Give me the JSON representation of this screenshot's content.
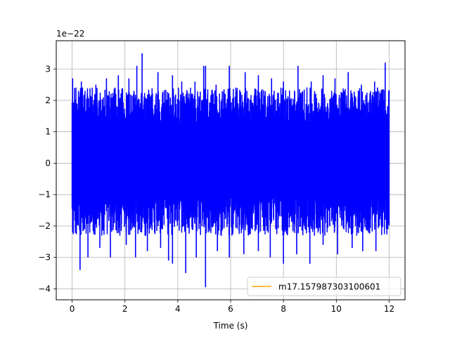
{
  "chart_data": {
    "type": "line",
    "title": "",
    "xlabel": "Time (s)",
    "ylabel": "",
    "offset_text": "1e−22",
    "xlim": [
      -0.6,
      12.6
    ],
    "ylim": [
      -4.35,
      3.9
    ],
    "grid": true,
    "x_ticks": [
      0,
      2,
      4,
      6,
      8,
      10,
      12
    ],
    "x_tick_labels": [
      "0",
      "2",
      "4",
      "6",
      "8",
      "10",
      "12"
    ],
    "y_ticks": [
      -4,
      -3,
      -2,
      -1,
      0,
      1,
      2,
      3
    ],
    "y_tick_labels": [
      "−4",
      "−3",
      "−2",
      "−1",
      "0",
      "1",
      "2",
      "3"
    ],
    "legend": {
      "position": "lower-right"
    },
    "series": [
      {
        "name": "",
        "color": "#0000ff",
        "x_range": [
          0,
          12
        ],
        "core_band": [
          -1.0,
          1.2
        ],
        "envelope": [
          -2.3,
          2.4
        ],
        "upper_spikes": [
          {
            "x": 0.02,
            "y": 2.7
          },
          {
            "x": 0.35,
            "y": 2.6
          },
          {
            "x": 0.9,
            "y": 2.5
          },
          {
            "x": 1.3,
            "y": 2.7
          },
          {
            "x": 1.75,
            "y": 2.8
          },
          {
            "x": 2.15,
            "y": 2.7
          },
          {
            "x": 2.45,
            "y": 3.1
          },
          {
            "x": 2.65,
            "y": 3.5
          },
          {
            "x": 3.25,
            "y": 2.9
          },
          {
            "x": 3.8,
            "y": 2.8
          },
          {
            "x": 4.15,
            "y": 2.6
          },
          {
            "x": 4.65,
            "y": 2.6
          },
          {
            "x": 4.98,
            "y": 3.1
          },
          {
            "x": 5.05,
            "y": 3.1
          },
          {
            "x": 5.45,
            "y": 2.5
          },
          {
            "x": 5.95,
            "y": 3.1
          },
          {
            "x": 6.55,
            "y": 2.9
          },
          {
            "x": 7.05,
            "y": 2.8
          },
          {
            "x": 7.55,
            "y": 2.7
          },
          {
            "x": 8.0,
            "y": 2.6
          },
          {
            "x": 8.55,
            "y": 3.1
          },
          {
            "x": 9.05,
            "y": 2.6
          },
          {
            "x": 9.5,
            "y": 2.8
          },
          {
            "x": 9.95,
            "y": 2.7
          },
          {
            "x": 10.45,
            "y": 2.9
          },
          {
            "x": 10.95,
            "y": 2.5
          },
          {
            "x": 11.45,
            "y": 2.6
          },
          {
            "x": 11.85,
            "y": 3.2
          }
        ],
        "lower_spikes": [
          {
            "x": 0.02,
            "y": -2.2
          },
          {
            "x": 0.3,
            "y": -3.4
          },
          {
            "x": 0.6,
            "y": -3.0
          },
          {
            "x": 1.05,
            "y": -2.7
          },
          {
            "x": 1.45,
            "y": -3.0
          },
          {
            "x": 2.05,
            "y": -2.6
          },
          {
            "x": 2.4,
            "y": -3.0
          },
          {
            "x": 2.85,
            "y": -2.8
          },
          {
            "x": 3.35,
            "y": -2.7
          },
          {
            "x": 3.65,
            "y": -3.1
          },
          {
            "x": 3.8,
            "y": -3.2
          },
          {
            "x": 4.3,
            "y": -3.5
          },
          {
            "x": 4.7,
            "y": -3.0
          },
          {
            "x": 5.05,
            "y": -3.95
          },
          {
            "x": 5.5,
            "y": -2.8
          },
          {
            "x": 5.95,
            "y": -3.0
          },
          {
            "x": 6.5,
            "y": -2.9
          },
          {
            "x": 7.05,
            "y": -2.8
          },
          {
            "x": 7.5,
            "y": -3.0
          },
          {
            "x": 8.0,
            "y": -3.2
          },
          {
            "x": 8.5,
            "y": -2.9
          },
          {
            "x": 9.0,
            "y": -3.2
          },
          {
            "x": 9.5,
            "y": -2.6
          },
          {
            "x": 10.05,
            "y": -2.9
          },
          {
            "x": 10.6,
            "y": -2.7
          },
          {
            "x": 11.0,
            "y": -2.8
          },
          {
            "x": 11.5,
            "y": -2.8
          },
          {
            "x": 11.95,
            "y": -2.1
          }
        ]
      },
      {
        "name": "m17.157987303100601",
        "color": "#ffa500",
        "legend_only": true
      }
    ]
  }
}
